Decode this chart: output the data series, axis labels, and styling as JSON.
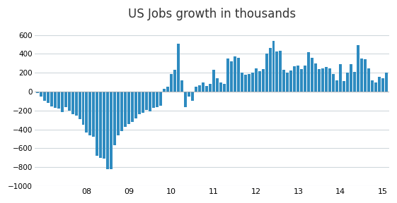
{
  "title": "US Jobs growth in thousands",
  "bar_color": "#2E8BC0",
  "background_color": "#FFFFFF",
  "ylim": [
    -1000,
    700
  ],
  "yticks": [
    -1000,
    -800,
    -600,
    -400,
    -200,
    0,
    200,
    400,
    600
  ],
  "xlabel_ticks": [
    "08",
    "09",
    "10",
    "11",
    "12",
    "13",
    "14",
    "15"
  ],
  "values": [
    -13,
    -52,
    -97,
    -120,
    -159,
    -168,
    -175,
    -213,
    -160,
    -200,
    -240,
    -250,
    -290,
    -350,
    -430,
    -460,
    -480,
    -680,
    -700,
    -710,
    -820,
    -820,
    -570,
    -460,
    -420,
    -370,
    -340,
    -320,
    -280,
    -240,
    -220,
    -190,
    -210,
    -170,
    -160,
    -150,
    30,
    50,
    190,
    230,
    510,
    120,
    -160,
    -50,
    -100,
    50,
    70,
    100,
    60,
    80,
    230,
    140,
    100,
    80,
    350,
    320,
    370,
    360,
    200,
    180,
    190,
    200,
    250,
    220,
    240,
    400,
    460,
    540,
    425,
    430,
    235,
    200,
    225,
    270,
    280,
    240,
    280,
    420,
    360,
    300,
    240,
    245,
    260,
    250,
    190,
    120,
    290,
    110,
    200,
    290,
    210,
    490,
    350,
    340,
    250,
    120,
    100,
    160,
    140,
    200
  ],
  "n_2007": 9,
  "bars_per_year": 12
}
